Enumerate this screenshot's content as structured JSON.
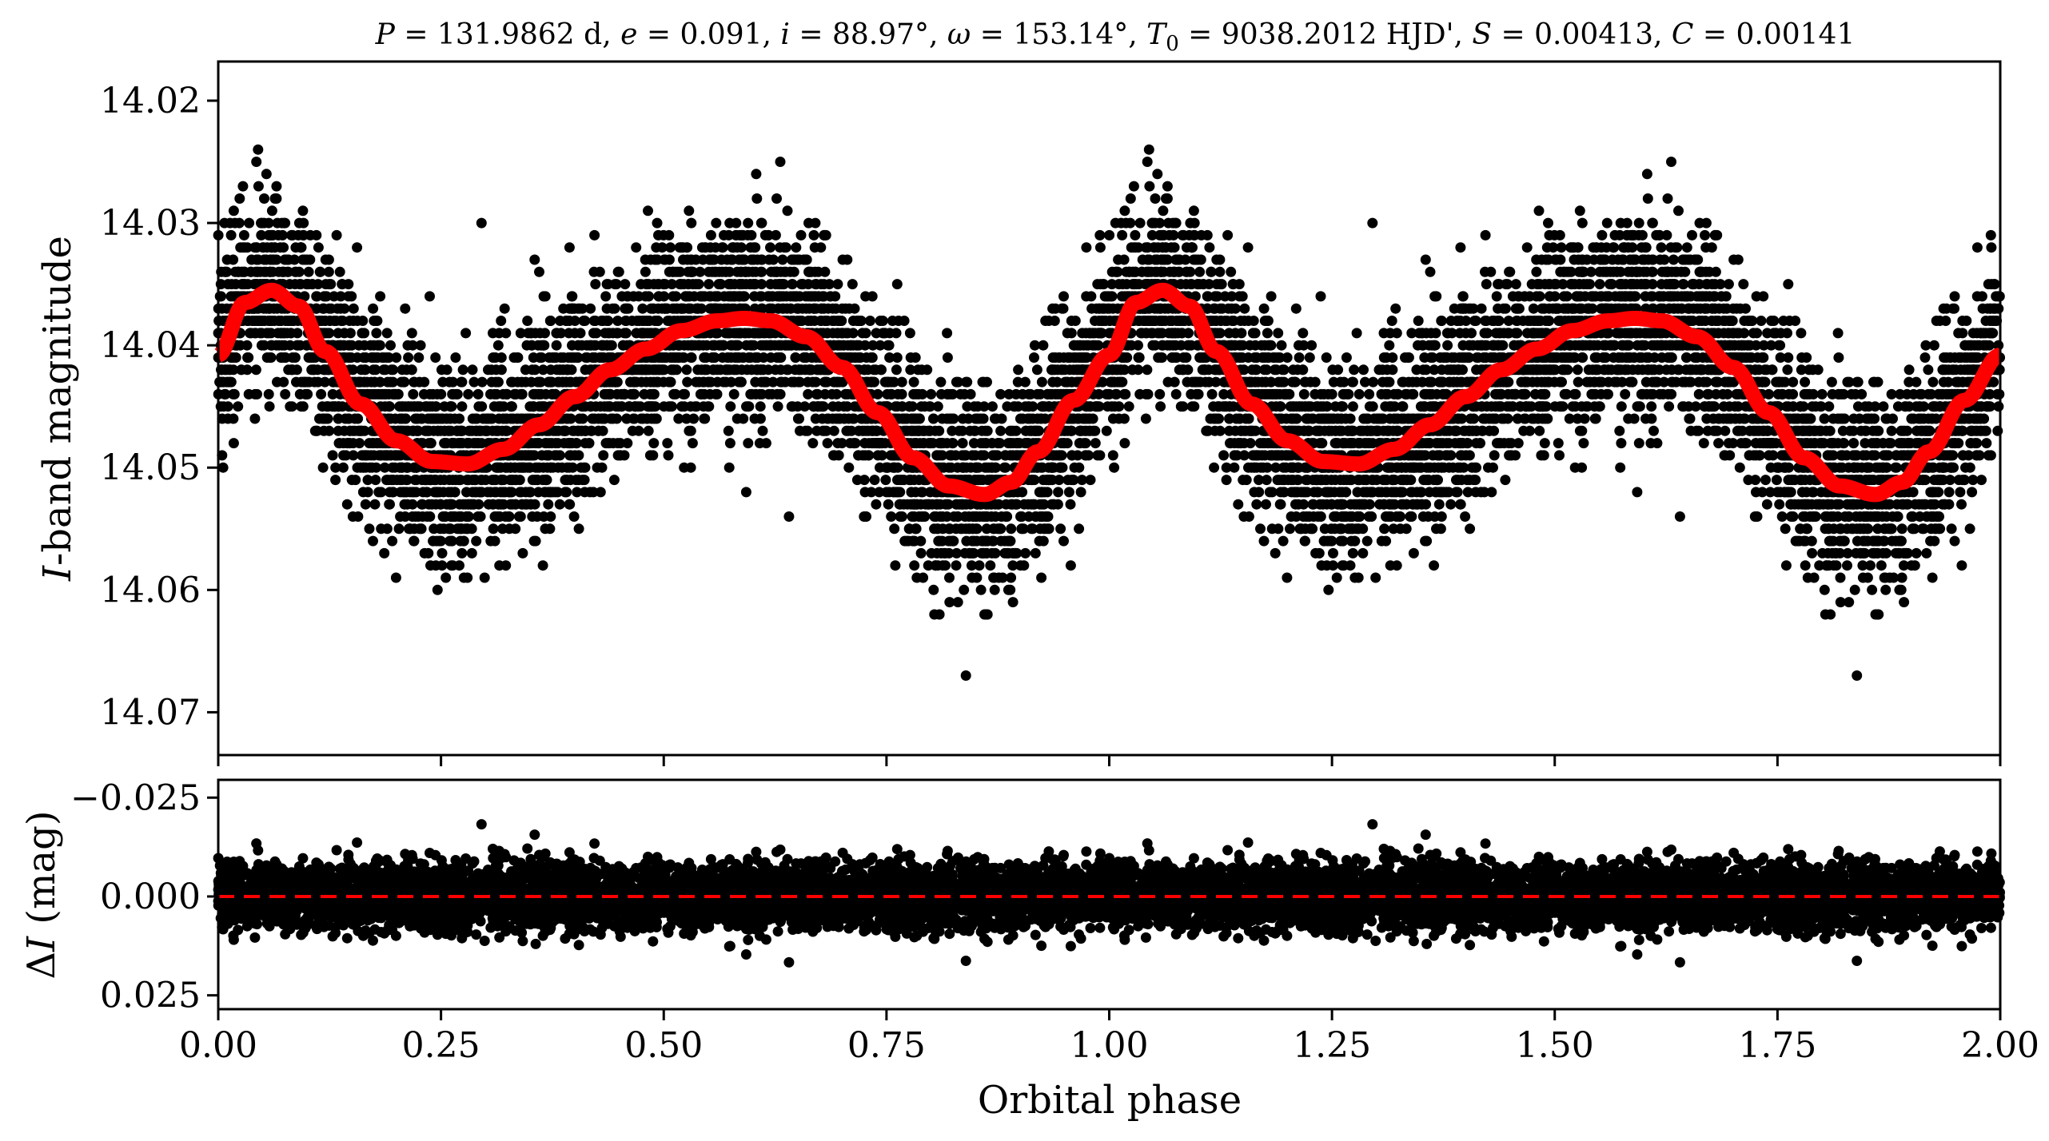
{
  "chart_data": [
    {
      "panel": "top",
      "type": "scatter",
      "title": "P = 131.9862 d, e = 0.091, i = 88.97°, ω = 153.14°, T₀ = 9038.2012 HJD', S = 0.00413, C = 0.00141",
      "title_parts": {
        "P_sym": "P",
        "P_val": " = 131.9862 d, ",
        "e_sym": "e",
        "e_val": " = 0.091, ",
        "i_sym": "i",
        "i_val": " = 88.97°, ",
        "w_sym": "ω",
        "w_val": " = 153.14°, ",
        "T_sym": "T",
        "T_sub": "0",
        "T_val": " = 9038.2012 HJD', ",
        "S_sym": "S",
        "S_val": " = 0.00413, ",
        "C_sym": "C",
        "C_val": " = 0.00141"
      },
      "ylabel_italic": "I",
      "ylabel_rest": "-band magnitude",
      "xlim": [
        0.0,
        2.0
      ],
      "ylim": [
        14.0735,
        14.0168
      ],
      "y_inverted": true,
      "y_ticks": [
        "14.02",
        "14.03",
        "14.04",
        "14.05",
        "14.06",
        "14.07"
      ],
      "y_tick_values": [
        14.02,
        14.03,
        14.04,
        14.05,
        14.06,
        14.07
      ],
      "series": [
        {
          "kind": "observations",
          "marker": "filled circle",
          "color": "#000000",
          "quantization_mag": 0.001,
          "scatter_sigma_mag": 0.004,
          "points_per_phase_cycle": 4500
        },
        {
          "kind": "model",
          "line": "solid thick",
          "color": "#ff0000",
          "phase": [
            0.0,
            0.03,
            0.06,
            0.09,
            0.12,
            0.16,
            0.2,
            0.24,
            0.28,
            0.32,
            0.36,
            0.4,
            0.44,
            0.48,
            0.52,
            0.56,
            0.59,
            0.62,
            0.66,
            0.7,
            0.74,
            0.78,
            0.82,
            0.86,
            0.89,
            0.92,
            0.96,
            1.0
          ],
          "magnitude": [
            14.0408,
            14.0365,
            14.0355,
            14.0368,
            14.0405,
            14.0448,
            14.0478,
            14.0495,
            14.0497,
            14.0485,
            14.0465,
            14.0442,
            14.042,
            14.0403,
            14.0388,
            14.038,
            14.0378,
            14.038,
            14.0393,
            14.0418,
            14.0455,
            14.0492,
            14.0515,
            14.0522,
            14.0512,
            14.0487,
            14.0445,
            14.0408
          ]
        }
      ]
    },
    {
      "panel": "bottom",
      "type": "scatter",
      "ylabel_delta": "Δ",
      "ylabel_italic": "I",
      "ylabel_rest": " (mag)",
      "xlabel": "Orbital phase",
      "xlim": [
        0.0,
        2.0
      ],
      "ylim": [
        0.0285,
        -0.0295
      ],
      "y_inverted": true,
      "y_ticks": [
        "−0.025",
        "0.000",
        "0.025"
      ],
      "y_tick_values": [
        -0.025,
        0.0,
        0.025
      ],
      "x_ticks": [
        "0.00",
        "0.25",
        "0.50",
        "0.75",
        "1.00",
        "1.25",
        "1.50",
        "1.75",
        "2.00"
      ],
      "x_tick_values": [
        0.0,
        0.25,
        0.5,
        0.75,
        1.0,
        1.25,
        1.5,
        1.75,
        2.0
      ],
      "series": [
        {
          "kind": "residuals",
          "marker": "filled circle",
          "color": "#000000",
          "scatter_sigma_mag": 0.004
        },
        {
          "kind": "zero line",
          "line": "dashed",
          "color": "#ff0000",
          "y": 0.0
        }
      ]
    }
  ]
}
